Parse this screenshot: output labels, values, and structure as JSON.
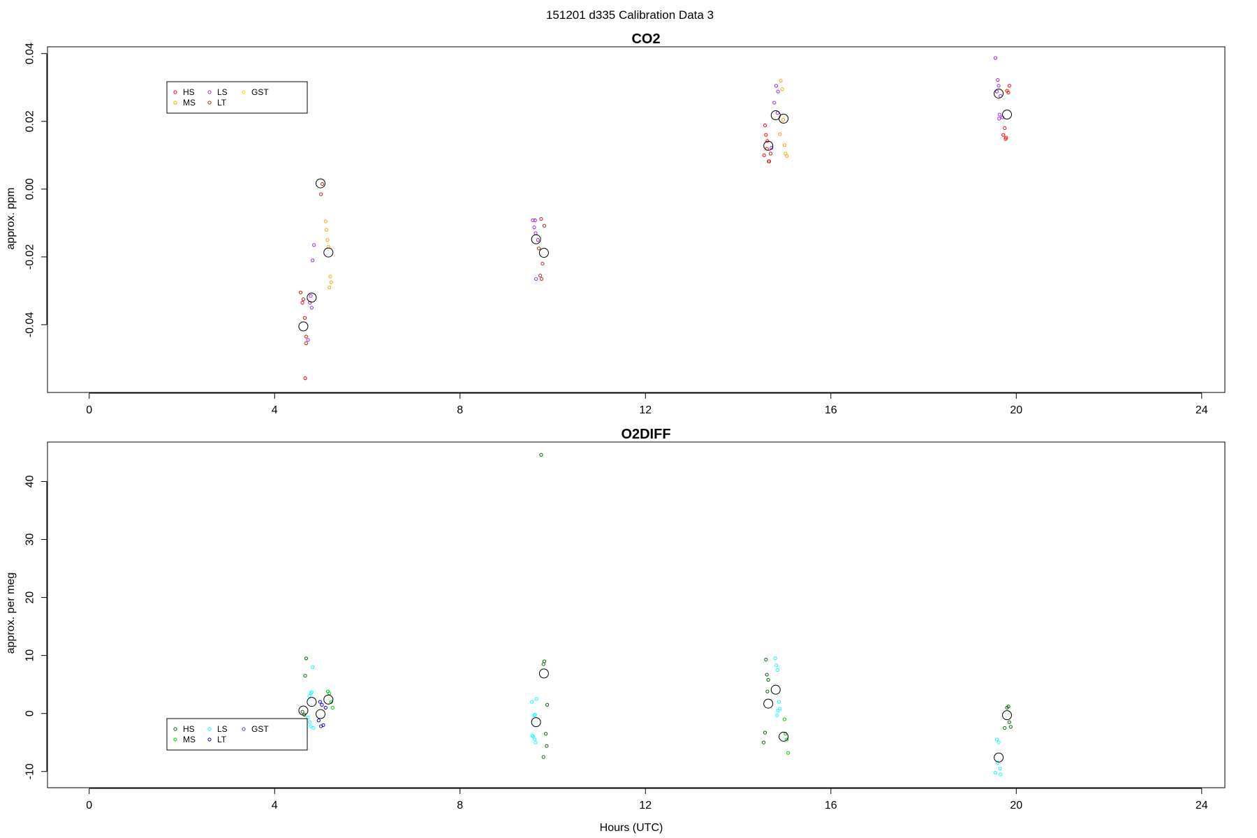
{
  "figure": {
    "suptitle": "151201   d335   Calibration Data 3",
    "xlabel": "Hours (UTC)"
  },
  "chart_data": [
    {
      "type": "scatter",
      "title": "CO2",
      "xlabel": "",
      "ylabel": "approx. ppm",
      "xlim": [
        -0.9,
        24.5
      ],
      "ylim": [
        -0.06,
        0.042
      ],
      "xticks": [
        0,
        4,
        8,
        12,
        16,
        20,
        24
      ],
      "yticks": [
        -0.04,
        -0.02,
        0.0,
        0.02,
        0.04
      ],
      "ytick_labels": [
        "-0.04",
        "-0.02",
        "0.00",
        "0.02",
        "0.04"
      ],
      "grid": false,
      "legend": {
        "placement": "top-left",
        "columns": 3
      },
      "series": [
        {
          "name": "HS",
          "color": "#ff0000",
          "points": [
            [
              4.56,
              -0.0305
            ],
            [
              4.6,
              -0.0335
            ],
            [
              4.65,
              -0.038
            ],
            [
              4.68,
              -0.0435
            ],
            [
              4.66,
              -0.0558
            ],
            [
              14.58,
              0.0188
            ],
            [
              14.6,
              0.016
            ],
            [
              14.63,
              0.0142
            ],
            [
              14.56,
              0.01
            ],
            [
              14.7,
              0.0105
            ],
            [
              14.67,
              0.0082
            ],
            [
              14.62,
              0.0119
            ],
            [
              19.78,
              0.0152
            ],
            [
              19.8,
              0.029
            ],
            [
              19.75,
              0.018
            ],
            [
              19.72,
              0.016
            ],
            [
              19.85,
              0.0305
            ],
            [
              19.77,
              0.0148
            ],
            [
              19.83,
              0.0285
            ]
          ]
        },
        {
          "name": "MS",
          "color": "#ffa500",
          "points": [
            [
              5.1,
              -0.0095
            ],
            [
              5.12,
              -0.012
            ],
            [
              5.14,
              -0.015
            ],
            [
              5.16,
              -0.017
            ],
            [
              5.2,
              -0.0258
            ],
            [
              5.22,
              -0.0275
            ],
            [
              5.18,
              -0.029
            ],
            [
              14.92,
              0.032
            ],
            [
              14.95,
              0.0295
            ],
            [
              14.9,
              0.0162
            ],
            [
              15.0,
              0.013
            ],
            [
              15.05,
              0.0098
            ],
            [
              15.02,
              0.0105
            ],
            [
              14.97,
              0.0205
            ]
          ]
        },
        {
          "name": "LS",
          "color": "#a020f0",
          "points": [
            [
              4.85,
              -0.0165
            ],
            [
              4.82,
              -0.021
            ],
            [
              4.78,
              -0.0315
            ],
            [
              4.8,
              -0.035
            ],
            [
              4.76,
              -0.0335
            ],
            [
              4.72,
              -0.0445
            ],
            [
              9.57,
              -0.0092
            ],
            [
              9.62,
              -0.0092
            ],
            [
              9.6,
              -0.0113
            ],
            [
              9.63,
              -0.013
            ],
            [
              9.68,
              -0.015
            ],
            [
              9.64,
              -0.0265
            ],
            [
              14.78,
              0.0255
            ],
            [
              14.82,
              0.0305
            ],
            [
              14.86,
              0.0288
            ],
            [
              14.85,
              0.0225
            ],
            [
              14.72,
              0.0122
            ],
            [
              19.55,
              0.0387
            ],
            [
              19.6,
              0.0322
            ],
            [
              19.62,
              0.0305
            ],
            [
              19.58,
              0.0288
            ],
            [
              19.66,
              0.0275
            ],
            [
              19.64,
              0.022
            ],
            [
              19.7,
              0.0212
            ],
            [
              19.63,
              0.0208
            ]
          ]
        },
        {
          "name": "LT",
          "color": "#b22222",
          "points": [
            [
              5.0,
              -0.0015
            ],
            [
              5.03,
              0.0015
            ],
            [
              4.62,
              -0.0325
            ],
            [
              4.68,
              -0.0455
            ],
            [
              9.75,
              -0.0088
            ],
            [
              9.73,
              -0.0255
            ],
            [
              9.78,
              -0.022
            ],
            [
              9.82,
              -0.0108
            ],
            [
              9.7,
              -0.0175
            ],
            [
              9.76,
              -0.0265
            ],
            [
              14.66,
              0.0082
            ]
          ]
        },
        {
          "name": "GST",
          "color": "#ffd700",
          "points": []
        }
      ],
      "means": [
        [
          4.62,
          -0.0405
        ],
        [
          4.8,
          -0.032
        ],
        [
          4.99,
          0.0017
        ],
        [
          5.16,
          -0.0187
        ],
        [
          9.64,
          -0.0148
        ],
        [
          9.81,
          -0.0188
        ],
        [
          14.65,
          0.0128
        ],
        [
          14.81,
          0.0218
        ],
        [
          14.98,
          0.0208
        ],
        [
          19.62,
          0.0282
        ],
        [
          19.8,
          0.022
        ]
      ]
    },
    {
      "type": "scatter",
      "title": "O2DIFF",
      "xlabel": "Hours (UTC)",
      "ylabel": "approx. per meg",
      "xlim": [
        -0.9,
        24.5
      ],
      "ylim": [
        -12.8,
        46.8
      ],
      "xticks": [
        0,
        4,
        8,
        12,
        16,
        20,
        24
      ],
      "yticks": [
        -10,
        0,
        10,
        20,
        30,
        40
      ],
      "ytick_labels": [
        "-10",
        "0",
        "10",
        "20",
        "30",
        "40"
      ],
      "grid": false,
      "legend": {
        "placement": "bottom-left",
        "columns": 3
      },
      "series": [
        {
          "name": "HS",
          "color": "#006400",
          "points": [
            [
              4.68,
              9.5
            ],
            [
              4.66,
              6.5
            ],
            [
              4.6,
              0.3
            ],
            [
              4.64,
              -0.2
            ],
            [
              9.8,
              8.5
            ],
            [
              9.82,
              9.0
            ],
            [
              9.85,
              -3.5
            ],
            [
              9.87,
              -5.6
            ],
            [
              9.8,
              -7.5
            ],
            [
              9.88,
              1.5
            ],
            [
              9.75,
              44.6
            ],
            [
              14.6,
              9.3
            ],
            [
              14.62,
              6.7
            ],
            [
              14.65,
              5.8
            ],
            [
              14.58,
              -3.3
            ],
            [
              14.55,
              -5.0
            ],
            [
              14.63,
              3.8
            ],
            [
              19.8,
              1.0
            ],
            [
              19.83,
              1.2
            ],
            [
              19.85,
              -1.5
            ],
            [
              19.88,
              -2.3
            ],
            [
              19.75,
              -2.5
            ]
          ]
        },
        {
          "name": "MS",
          "color": "#00cd00",
          "points": [
            [
              5.15,
              3.8
            ],
            [
              5.18,
              3.5
            ],
            [
              5.22,
              2.0
            ],
            [
              5.25,
              1.0
            ],
            [
              15.0,
              -1.0
            ],
            [
              15.02,
              -3.5
            ],
            [
              15.05,
              -4.5
            ],
            [
              15.08,
              -6.8
            ]
          ]
        },
        {
          "name": "LS",
          "color": "#00ffff",
          "points": [
            [
              4.82,
              8.0
            ],
            [
              4.78,
              3.5
            ],
            [
              4.8,
              3.7
            ],
            [
              4.75,
              3.0
            ],
            [
              4.72,
              -0.7
            ],
            [
              4.76,
              -1.5
            ],
            [
              4.78,
              -2.2
            ],
            [
              4.84,
              -2.5
            ],
            [
              9.55,
              2.0
            ],
            [
              9.6,
              -0.3
            ],
            [
              9.62,
              -0.2
            ],
            [
              9.65,
              2.5
            ],
            [
              9.58,
              -4.0
            ],
            [
              9.61,
              -4.5
            ],
            [
              9.63,
              -5.0
            ],
            [
              9.56,
              -3.8
            ],
            [
              14.8,
              9.5
            ],
            [
              14.82,
              8.3
            ],
            [
              14.85,
              7.5
            ],
            [
              14.88,
              2.0
            ],
            [
              14.86,
              0.5
            ],
            [
              14.9,
              0.8
            ],
            [
              14.84,
              -0.3
            ],
            [
              19.58,
              -4.5
            ],
            [
              19.62,
              -5.0
            ],
            [
              19.6,
              -8.5
            ],
            [
              19.55,
              -10.2
            ],
            [
              19.65,
              -9.5
            ],
            [
              19.66,
              -10.5
            ]
          ]
        },
        {
          "name": "LT",
          "color": "#0000cd",
          "points": [
            [
              4.98,
              2.0
            ],
            [
              5.02,
              1.5
            ],
            [
              5.05,
              -2.0
            ],
            [
              4.95,
              -1.2
            ],
            [
              5.1,
              1.0
            ],
            [
              5.0,
              -2.2
            ]
          ]
        },
        {
          "name": "GST",
          "color": "#4040c0",
          "points": []
        }
      ],
      "means": [
        [
          4.62,
          0.5
        ],
        [
          4.8,
          2.0
        ],
        [
          4.99,
          -0.1
        ],
        [
          5.16,
          2.4
        ],
        [
          9.64,
          -1.5
        ],
        [
          9.81,
          6.9
        ],
        [
          14.65,
          1.7
        ],
        [
          14.81,
          4.1
        ],
        [
          14.98,
          -4.0
        ],
        [
          19.62,
          -7.6
        ],
        [
          19.8,
          -0.3
        ]
      ]
    }
  ]
}
